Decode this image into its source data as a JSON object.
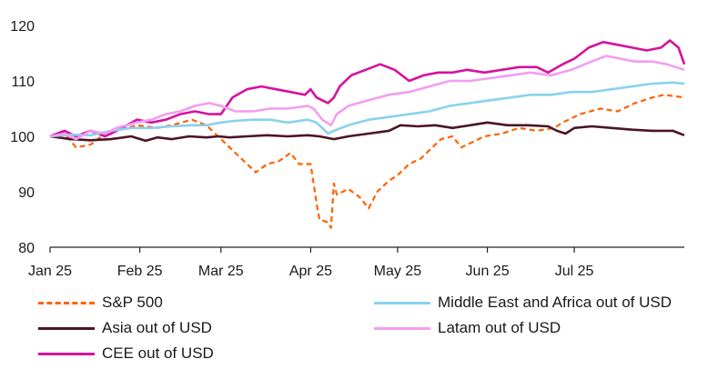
{
  "chart_data": {
    "type": "line",
    "x": [
      "Jan 25",
      "Feb 25",
      "Mar 25",
      "Apr 25",
      "May 25",
      "Jun 25",
      "Jul 25"
    ],
    "x_tick_labels": [
      "Jan 25",
      "Feb 25",
      "Mar 25",
      "Apr 25",
      "May 25",
      "Jun 25",
      "Jul 25"
    ],
    "x_range": [
      "2025-01-01",
      "2025-08-08"
    ],
    "ylim": [
      80,
      120
    ],
    "y_ticks": [
      80,
      90,
      100,
      110,
      120
    ],
    "grid": false,
    "legend_position": "bottom",
    "series": [
      {
        "name": "S&P 500",
        "color": "#ff6200",
        "dash": "dashed",
        "points": [
          [
            "2025-01-01",
            100
          ],
          [
            "2025-01-06",
            100.5
          ],
          [
            "2025-01-10",
            98
          ],
          [
            "2025-01-15",
            98.5
          ],
          [
            "2025-01-20",
            100.5
          ],
          [
            "2025-01-24",
            101
          ],
          [
            "2025-01-31",
            102
          ],
          [
            "2025-02-07",
            101.5
          ],
          [
            "2025-02-12",
            102
          ],
          [
            "2025-02-19",
            103
          ],
          [
            "2025-02-24",
            102
          ],
          [
            "2025-02-28",
            100
          ],
          [
            "2025-03-04",
            98
          ],
          [
            "2025-03-08",
            96
          ],
          [
            "2025-03-13",
            93.5
          ],
          [
            "2025-03-17",
            95
          ],
          [
            "2025-03-21",
            95.5
          ],
          [
            "2025-03-25",
            97
          ],
          [
            "2025-03-28",
            95
          ],
          [
            "2025-04-01",
            95
          ],
          [
            "2025-04-03",
            88
          ],
          [
            "2025-04-04",
            85
          ],
          [
            "2025-04-07",
            84.5
          ],
          [
            "2025-04-08",
            83.5
          ],
          [
            "2025-04-09",
            91.5
          ],
          [
            "2025-04-10",
            89.5
          ],
          [
            "2025-04-14",
            90.5
          ],
          [
            "2025-04-18",
            89
          ],
          [
            "2025-04-21",
            87
          ],
          [
            "2025-04-24",
            90
          ],
          [
            "2025-04-28",
            92
          ],
          [
            "2025-05-01",
            93
          ],
          [
            "2025-05-05",
            95
          ],
          [
            "2025-05-09",
            96
          ],
          [
            "2025-05-13",
            98
          ],
          [
            "2025-05-16",
            99.5
          ],
          [
            "2025-05-20",
            100
          ],
          [
            "2025-05-23",
            98
          ],
          [
            "2025-05-27",
            99
          ],
          [
            "2025-05-31",
            100
          ],
          [
            "2025-06-06",
            100.5
          ],
          [
            "2025-06-12",
            101.5
          ],
          [
            "2025-06-18",
            101
          ],
          [
            "2025-06-24",
            101.5
          ],
          [
            "2025-06-27",
            102.5
          ],
          [
            "2025-07-03",
            104
          ],
          [
            "2025-07-10",
            105
          ],
          [
            "2025-07-16",
            104.5
          ],
          [
            "2025-07-22",
            106
          ],
          [
            "2025-07-28",
            107
          ],
          [
            "2025-08-01",
            107.5
          ],
          [
            "2025-08-08",
            107
          ]
        ]
      },
      {
        "name": "Asia out of USD",
        "color": "#4a1525",
        "dash": "solid",
        "points": [
          [
            "2025-01-01",
            100
          ],
          [
            "2025-01-08",
            99.5
          ],
          [
            "2025-01-15",
            99.3
          ],
          [
            "2025-01-22",
            99.5
          ],
          [
            "2025-01-29",
            100
          ],
          [
            "2025-02-03",
            99.2
          ],
          [
            "2025-02-07",
            99.8
          ],
          [
            "2025-02-12",
            99.5
          ],
          [
            "2025-02-18",
            100
          ],
          [
            "2025-02-24",
            99.8
          ],
          [
            "2025-02-28",
            100
          ],
          [
            "2025-03-04",
            99.8
          ],
          [
            "2025-03-10",
            100
          ],
          [
            "2025-03-17",
            100.2
          ],
          [
            "2025-03-24",
            100
          ],
          [
            "2025-03-31",
            100.2
          ],
          [
            "2025-04-04",
            100
          ],
          [
            "2025-04-09",
            99.5
          ],
          [
            "2025-04-14",
            100
          ],
          [
            "2025-04-21",
            100.5
          ],
          [
            "2025-04-28",
            101
          ],
          [
            "2025-05-02",
            102
          ],
          [
            "2025-05-08",
            101.8
          ],
          [
            "2025-05-14",
            102
          ],
          [
            "2025-05-20",
            101.5
          ],
          [
            "2025-05-26",
            102
          ],
          [
            "2025-06-01",
            102.5
          ],
          [
            "2025-06-08",
            102
          ],
          [
            "2025-06-15",
            102
          ],
          [
            "2025-06-22",
            101.8
          ],
          [
            "2025-06-25",
            101
          ],
          [
            "2025-06-28",
            100.5
          ],
          [
            "2025-07-01",
            101.5
          ],
          [
            "2025-07-07",
            101.8
          ],
          [
            "2025-07-14",
            101.5
          ],
          [
            "2025-07-21",
            101.2
          ],
          [
            "2025-07-28",
            101
          ],
          [
            "2025-08-04",
            101
          ],
          [
            "2025-08-08",
            100.2
          ]
        ]
      },
      {
        "name": "CEE out of USD",
        "color": "#d6119b",
        "dash": "solid",
        "points": [
          [
            "2025-01-01",
            100
          ],
          [
            "2025-01-06",
            101
          ],
          [
            "2025-01-10",
            100
          ],
          [
            "2025-01-15",
            101
          ],
          [
            "2025-01-20",
            100
          ],
          [
            "2025-01-24",
            101
          ],
          [
            "2025-01-31",
            103
          ],
          [
            "2025-02-05",
            102.5
          ],
          [
            "2025-02-10",
            103
          ],
          [
            "2025-02-15",
            104
          ],
          [
            "2025-02-20",
            104.5
          ],
          [
            "2025-02-25",
            104
          ],
          [
            "2025-03-01",
            104
          ],
          [
            "2025-03-05",
            107
          ],
          [
            "2025-03-10",
            108.5
          ],
          [
            "2025-03-15",
            109
          ],
          [
            "2025-03-20",
            108.5
          ],
          [
            "2025-03-25",
            108
          ],
          [
            "2025-03-30",
            107.5
          ],
          [
            "2025-04-01",
            108.5
          ],
          [
            "2025-04-03",
            107
          ],
          [
            "2025-04-07",
            106
          ],
          [
            "2025-04-09",
            107
          ],
          [
            "2025-04-11",
            109
          ],
          [
            "2025-04-15",
            111
          ],
          [
            "2025-04-20",
            112
          ],
          [
            "2025-04-25",
            113
          ],
          [
            "2025-04-30",
            112
          ],
          [
            "2025-05-05",
            110
          ],
          [
            "2025-05-10",
            111
          ],
          [
            "2025-05-15",
            111.5
          ],
          [
            "2025-05-20",
            111.5
          ],
          [
            "2025-05-25",
            112
          ],
          [
            "2025-05-31",
            111.5
          ],
          [
            "2025-06-06",
            112
          ],
          [
            "2025-06-12",
            112.5
          ],
          [
            "2025-06-18",
            112.5
          ],
          [
            "2025-06-22",
            111.5
          ],
          [
            "2025-06-27",
            113
          ],
          [
            "2025-07-01",
            114
          ],
          [
            "2025-07-06",
            116
          ],
          [
            "2025-07-11",
            117
          ],
          [
            "2025-07-16",
            116.5
          ],
          [
            "2025-07-21",
            116
          ],
          [
            "2025-07-26",
            115.5
          ],
          [
            "2025-07-31",
            116
          ],
          [
            "2025-08-03",
            117.3
          ],
          [
            "2025-08-06",
            116
          ],
          [
            "2025-08-08",
            113
          ]
        ]
      },
      {
        "name": "Middle East and Africa out of USD",
        "color": "#89d1f0",
        "dash": "solid",
        "points": [
          [
            "2025-01-01",
            100
          ],
          [
            "2025-01-08",
            100.3
          ],
          [
            "2025-01-15",
            100.2
          ],
          [
            "2025-01-22",
            101
          ],
          [
            "2025-01-29",
            101.5
          ],
          [
            "2025-02-05",
            101.5
          ],
          [
            "2025-02-12",
            101.8
          ],
          [
            "2025-02-19",
            102
          ],
          [
            "2025-02-24",
            102
          ],
          [
            "2025-03-01",
            102.5
          ],
          [
            "2025-03-06",
            102.8
          ],
          [
            "2025-03-12",
            103
          ],
          [
            "2025-03-18",
            103
          ],
          [
            "2025-03-24",
            102.5
          ],
          [
            "2025-03-31",
            103
          ],
          [
            "2025-04-03",
            102.5
          ],
          [
            "2025-04-07",
            100.5
          ],
          [
            "2025-04-09",
            101
          ],
          [
            "2025-04-14",
            102
          ],
          [
            "2025-04-21",
            103
          ],
          [
            "2025-04-28",
            103.5
          ],
          [
            "2025-05-05",
            104
          ],
          [
            "2025-05-12",
            104.5
          ],
          [
            "2025-05-19",
            105.5
          ],
          [
            "2025-05-26",
            106
          ],
          [
            "2025-06-02",
            106.5
          ],
          [
            "2025-06-09",
            107
          ],
          [
            "2025-06-16",
            107.5
          ],
          [
            "2025-06-23",
            107.5
          ],
          [
            "2025-06-30",
            108
          ],
          [
            "2025-07-07",
            108
          ],
          [
            "2025-07-14",
            108.5
          ],
          [
            "2025-07-21",
            109
          ],
          [
            "2025-07-28",
            109.5
          ],
          [
            "2025-08-04",
            109.7
          ],
          [
            "2025-08-08",
            109.5
          ]
        ]
      },
      {
        "name": "Latam out of USD",
        "color": "#f39df0",
        "dash": "solid",
        "points": [
          [
            "2025-01-01",
            100
          ],
          [
            "2025-01-06",
            100.5
          ],
          [
            "2025-01-10",
            99.5
          ],
          [
            "2025-01-15",
            101
          ],
          [
            "2025-01-20",
            100.5
          ],
          [
            "2025-01-24",
            101.5
          ],
          [
            "2025-01-31",
            102.5
          ],
          [
            "2025-02-05",
            103
          ],
          [
            "2025-02-10",
            104
          ],
          [
            "2025-02-15",
            104.5
          ],
          [
            "2025-02-20",
            105.5
          ],
          [
            "2025-02-25",
            106
          ],
          [
            "2025-03-01",
            105.5
          ],
          [
            "2025-03-06",
            104.5
          ],
          [
            "2025-03-12",
            104.5
          ],
          [
            "2025-03-18",
            105
          ],
          [
            "2025-03-24",
            105
          ],
          [
            "2025-03-31",
            105.5
          ],
          [
            "2025-04-02",
            105
          ],
          [
            "2025-04-05",
            103
          ],
          [
            "2025-04-08",
            102
          ],
          [
            "2025-04-10",
            104
          ],
          [
            "2025-04-14",
            105.5
          ],
          [
            "2025-04-21",
            106.5
          ],
          [
            "2025-04-28",
            107.5
          ],
          [
            "2025-05-05",
            108
          ],
          [
            "2025-05-12",
            109
          ],
          [
            "2025-05-19",
            110
          ],
          [
            "2025-05-26",
            110
          ],
          [
            "2025-06-02",
            110.5
          ],
          [
            "2025-06-09",
            111
          ],
          [
            "2025-06-16",
            111.5
          ],
          [
            "2025-06-23",
            111
          ],
          [
            "2025-06-30",
            112
          ],
          [
            "2025-07-07",
            113.5
          ],
          [
            "2025-07-12",
            114.5
          ],
          [
            "2025-07-17",
            114
          ],
          [
            "2025-07-22",
            113.5
          ],
          [
            "2025-07-28",
            113.5
          ],
          [
            "2025-08-02",
            113
          ],
          [
            "2025-08-05",
            112.5
          ],
          [
            "2025-08-08",
            112
          ]
        ]
      }
    ],
    "legend": [
      {
        "label": "S&P 500",
        "series": 0
      },
      {
        "label": "Middle East and Africa out of USD",
        "series": 3
      },
      {
        "label": "Asia out of USD",
        "series": 1
      },
      {
        "label": "Latam out of USD",
        "series": 4
      },
      {
        "label": "CEE out of USD",
        "series": 2
      }
    ]
  }
}
